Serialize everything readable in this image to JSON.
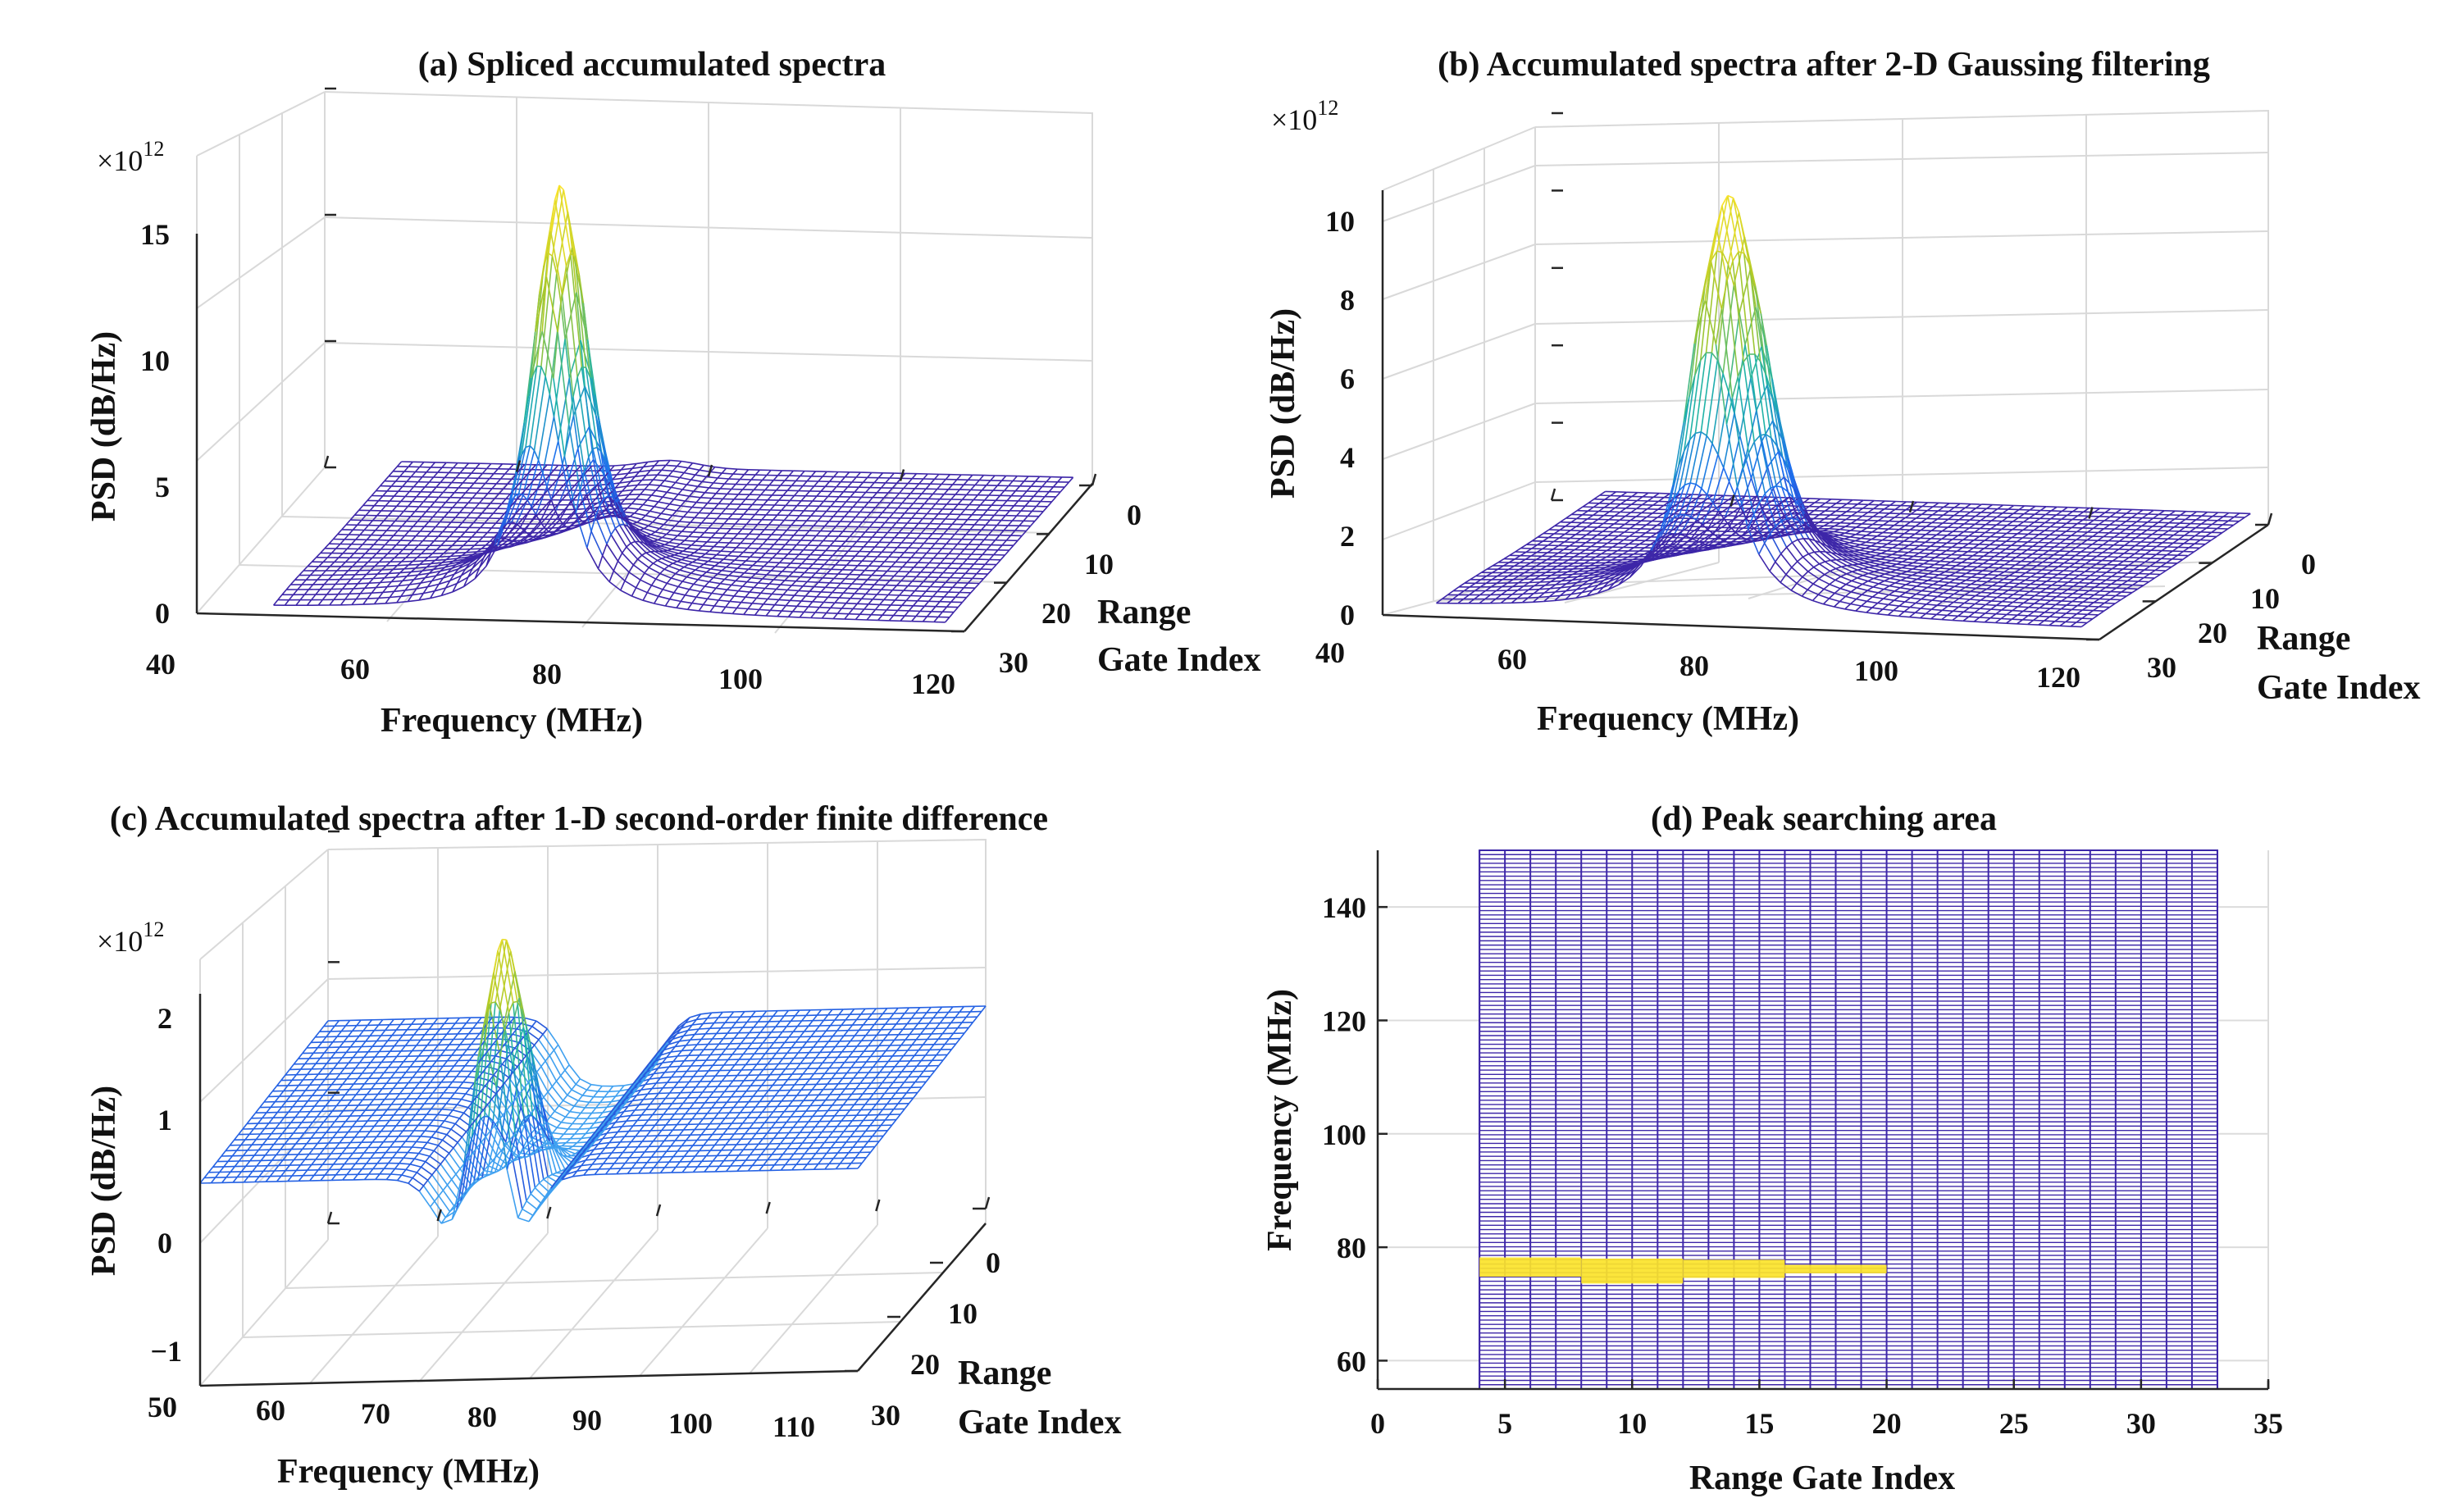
{
  "chart_data": [
    {
      "panel": "a",
      "type": "surface3d",
      "title": "(a) Spliced accumulated spectra",
      "xlabel": "Frequency (MHz)",
      "ylabel_lines": [
        "Range",
        "Gate Index"
      ],
      "zlabel": "PSD (dB/Hz)",
      "multiplier": "×10",
      "multiplier_exp": "12",
      "x_ticks": [
        "40",
        "60",
        "80",
        "100",
        "120"
      ],
      "y_ticks": [
        "0",
        "10",
        "20",
        "30"
      ],
      "z_ticks": [
        "0",
        "5",
        "10",
        "15"
      ],
      "xlim": [
        40,
        120
      ],
      "ylim": [
        0,
        30
      ],
      "zlim": [
        0,
        15
      ],
      "peak": {
        "frequency": 76,
        "range_gate": 4,
        "value": 16.2
      }
    },
    {
      "panel": "b",
      "type": "surface3d",
      "title": "(b) Accumulated spectra after 2-D Gaussing filtering",
      "xlabel": "Frequency (MHz)",
      "ylabel_lines": [
        "Range",
        "Gate Index"
      ],
      "zlabel": "PSD (dB/Hz)",
      "multiplier": "×10",
      "multiplier_exp": "12",
      "x_ticks": [
        "40",
        "60",
        "80",
        "100",
        "120"
      ],
      "y_ticks": [
        "0",
        "10",
        "20",
        "30"
      ],
      "z_ticks": [
        "0",
        "2",
        "4",
        "6",
        "8",
        "10"
      ],
      "xlim": [
        40,
        120
      ],
      "ylim": [
        0,
        30
      ],
      "zlim": [
        0,
        11
      ],
      "peak": {
        "frequency": 76,
        "range_gate": 4,
        "value": 11.8
      }
    },
    {
      "panel": "c",
      "type": "surface3d",
      "title": "(c) Accumulated spectra after 1-D second-order finite difference",
      "xlabel": "Frequency (MHz)",
      "ylabel_lines": [
        "Range",
        "Gate Index"
      ],
      "zlabel": "PSD (dB/Hz)",
      "multiplier": "×10",
      "multiplier_exp": "12",
      "x_ticks": [
        "50",
        "60",
        "70",
        "80",
        "90",
        "100",
        "110"
      ],
      "y_ticks": [
        "0",
        "10",
        "20",
        "30"
      ],
      "z_ticks": [
        "−1",
        "0",
        "1",
        "2"
      ],
      "xlim": [
        50,
        110
      ],
      "ylim": [
        0,
        30
      ],
      "zlim": [
        -1,
        2
      ],
      "peak": {
        "frequency": 76,
        "range_gate": 4,
        "value": 2.3
      }
    },
    {
      "panel": "d",
      "type": "mesh2d",
      "title": "(d) Peak searching area",
      "xlabel": "Range Gate Index",
      "ylabel": "Frequency (MHz)",
      "x_ticks": [
        "0",
        "5",
        "10",
        "15",
        "20",
        "25",
        "30",
        "35"
      ],
      "y_ticks": [
        "60",
        "80",
        "100",
        "120",
        "140"
      ],
      "xlim": [
        0,
        35
      ],
      "ylim": [
        55,
        150
      ],
      "mesh_extent": {
        "x": [
          4,
          33
        ],
        "y": [
          55,
          150
        ]
      },
      "highlight": {
        "x_range": [
          4,
          20
        ],
        "frequency": 76.5
      }
    }
  ],
  "colors": {
    "mesh_low": "#3d26a8",
    "mesh_c": "#3fa0f0",
    "mid": "#1fb3a8",
    "high": "#fbe32a",
    "axis": "#262626",
    "grid": "#dcdcdc"
  }
}
